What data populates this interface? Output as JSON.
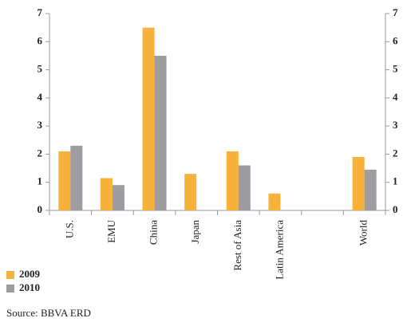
{
  "chart_data": {
    "type": "bar",
    "categories": [
      "U.S.",
      "EMU",
      "China",
      "Japan",
      "Rest of Asia",
      "Latin America",
      null,
      "World"
    ],
    "series": [
      {
        "name": "2009",
        "color": "#f7b23b",
        "values": [
          2.1,
          1.15,
          6.5,
          1.3,
          2.1,
          0.6,
          null,
          1.9
        ]
      },
      {
        "name": "2010",
        "color": "#9d9da1",
        "values": [
          2.3,
          0.9,
          5.5,
          null,
          1.6,
          null,
          null,
          1.45
        ]
      }
    ],
    "ylim": [
      0,
      7
    ],
    "yticks": [
      0,
      1,
      2,
      3,
      4,
      5,
      6,
      7
    ],
    "y2lim": [
      0,
      7
    ],
    "y2ticks": [
      0,
      1,
      2,
      3,
      4,
      5,
      6,
      7
    ],
    "source": "Source: BBVA ERD"
  }
}
